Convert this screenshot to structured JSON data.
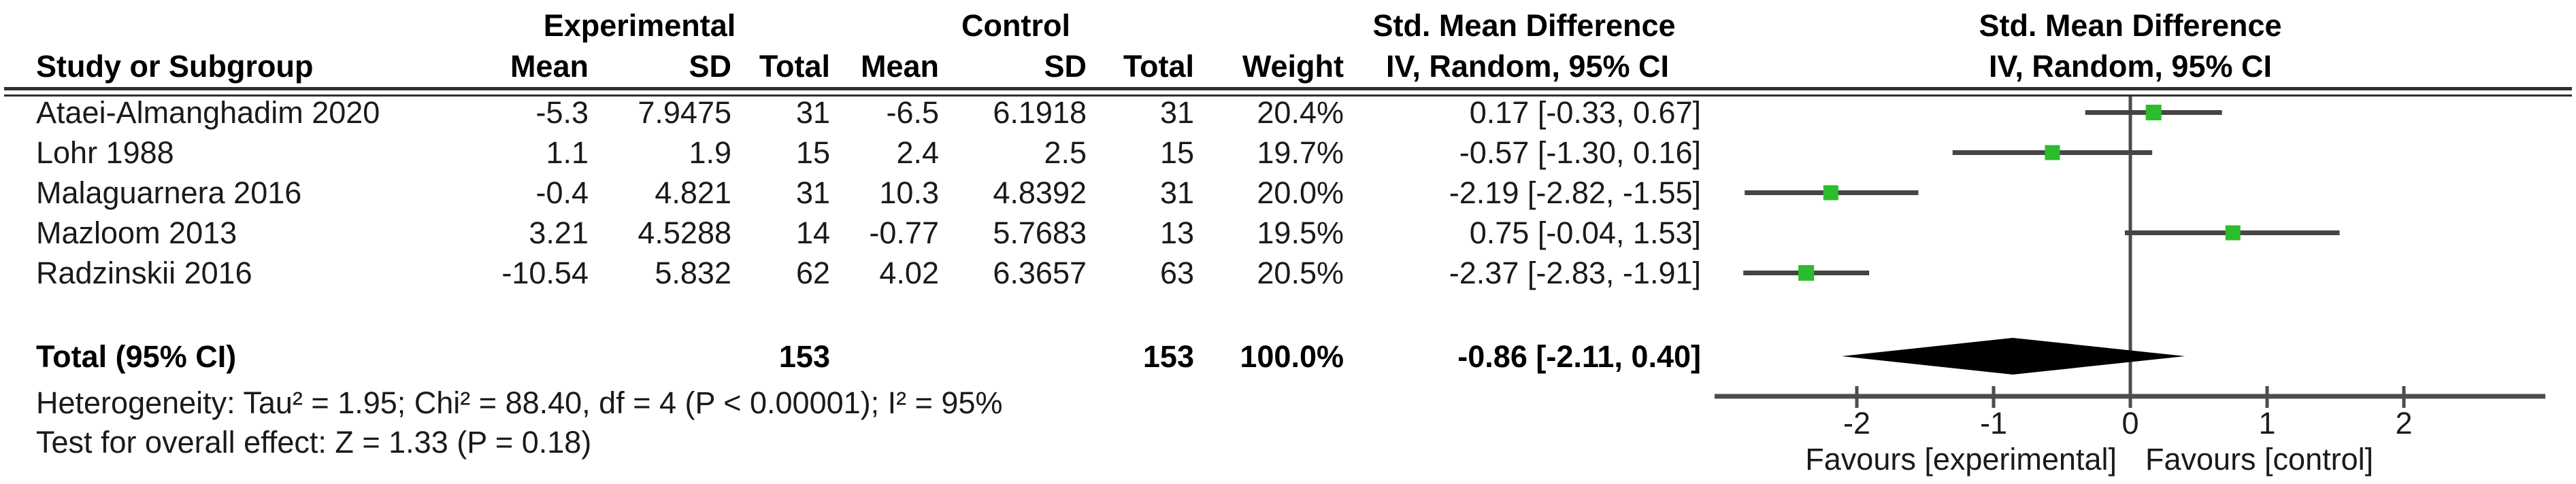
{
  "table": {
    "group_headers": {
      "experimental": "Experimental",
      "control": "Control",
      "smd_text": "Std. Mean Difference",
      "smd_plot": "Std. Mean Difference"
    },
    "col_headers": {
      "study": "Study or Subgroup",
      "mean_e": "Mean",
      "sd_e": "SD",
      "total_e": "Total",
      "mean_c": "Mean",
      "sd_c": "SD",
      "total_c": "Total",
      "weight": "Weight",
      "iv_text": "IV, Random, 95% CI",
      "iv_plot": "IV, Random, 95% CI"
    },
    "rows": [
      {
        "study": "Ataei-Almanghadim 2020",
        "mean_e": "-5.3",
        "sd_e": "7.9475",
        "total_e": "31",
        "mean_c": "-6.5",
        "sd_c": "6.1918",
        "total_c": "31",
        "weight": "20.4%",
        "ci": "0.17 [-0.33, 0.67]"
      },
      {
        "study": "Lohr 1988",
        "mean_e": "1.1",
        "sd_e": "1.9",
        "total_e": "15",
        "mean_c": "2.4",
        "sd_c": "2.5",
        "total_c": "15",
        "weight": "19.7%",
        "ci": "-0.57 [-1.30, 0.16]"
      },
      {
        "study": "Malaguarnera 2016",
        "mean_e": "-0.4",
        "sd_e": "4.821",
        "total_e": "31",
        "mean_c": "10.3",
        "sd_c": "4.8392",
        "total_c": "31",
        "weight": "20.0%",
        "ci": "-2.19 [-2.82, -1.55]"
      },
      {
        "study": "Mazloom 2013",
        "mean_e": "3.21",
        "sd_e": "4.5288",
        "total_e": "14",
        "mean_c": "-0.77",
        "sd_c": "5.7683",
        "total_c": "13",
        "weight": "19.5%",
        "ci": "0.75 [-0.04, 1.53]"
      },
      {
        "study": "Radzinskii 2016",
        "mean_e": "-10.54",
        "sd_e": "5.832",
        "total_e": "62",
        "mean_c": "4.02",
        "sd_c": "6.3657",
        "total_c": "63",
        "weight": "20.5%",
        "ci": "-2.37 [-2.83, -1.91]"
      }
    ],
    "total_row": {
      "label": "Total (95% CI)",
      "total_e": "153",
      "total_c": "153",
      "weight": "100.0%",
      "ci": "-0.86 [-2.11, 0.40]"
    },
    "footer": {
      "heterogeneity": "Heterogeneity: Tau² = 1.95; Chi² = 88.40, df = 4 (P < 0.00001); I² = 95%",
      "overall_effect": "Test for overall effect: Z = 1.33 (P = 0.18)"
    }
  },
  "chart_data": {
    "type": "forest",
    "effect_measure": "Std. Mean Difference",
    "method": "IV, Random, 95% CI",
    "x_axis": {
      "min": -3,
      "max": 3,
      "tick_values": [
        -2,
        -1,
        0,
        1,
        2
      ],
      "tick_labels": [
        "-2",
        "-1",
        "0",
        "1",
        "2"
      ],
      "zero_line": 0,
      "label_left": "Favours [experimental]",
      "label_right": "Favours [control]"
    },
    "studies": [
      {
        "name": "Ataei-Almanghadim 2020",
        "est": 0.17,
        "lo": -0.33,
        "hi": 0.67,
        "weight_pct": 20.4
      },
      {
        "name": "Lohr 1988",
        "est": -0.57,
        "lo": -1.3,
        "hi": 0.16,
        "weight_pct": 19.7
      },
      {
        "name": "Malaguarnera 2016",
        "est": -2.19,
        "lo": -2.82,
        "hi": -1.55,
        "weight_pct": 20.0
      },
      {
        "name": "Mazloom 2013",
        "est": 0.75,
        "lo": -0.04,
        "hi": 1.53,
        "weight_pct": 19.5
      },
      {
        "name": "Radzinskii 2016",
        "est": -2.37,
        "lo": -2.83,
        "hi": -1.91,
        "weight_pct": 20.5
      }
    ],
    "total": {
      "name": "Total (95% CI)",
      "est": -0.86,
      "lo": -2.11,
      "hi": 0.4,
      "weight_pct": 100.0
    },
    "colors": {
      "square": "#2bbd2b",
      "ci_line": "#454545",
      "axis": "#4d4d4d",
      "diamond": "#000000",
      "rule": "#2f2f2f"
    }
  }
}
